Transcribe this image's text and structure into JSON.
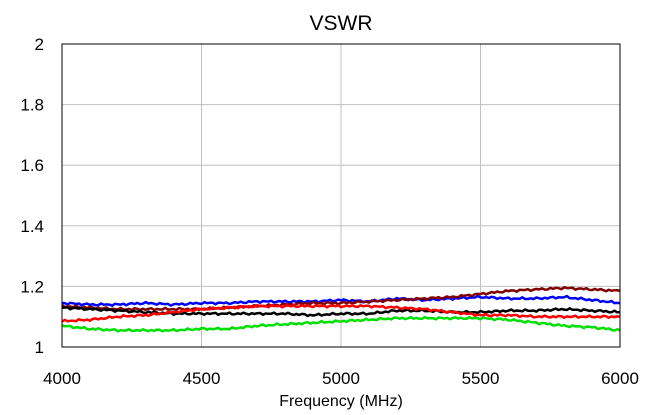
{
  "chart_data": {
    "type": "line",
    "title": "VSWR",
    "xlabel": "Frequency (MHz)",
    "ylabel": "",
    "xlim": [
      4000,
      6000
    ],
    "ylim": [
      1,
      2
    ],
    "xticks": [
      4000,
      4500,
      5000,
      5500,
      6000
    ],
    "yticks": [
      1,
      1.2,
      1.4,
      1.6,
      1.8,
      2
    ],
    "ytick_labels": [
      "1",
      "1.2",
      "1.4",
      "1.6",
      "1.8",
      "2"
    ],
    "grid": true,
    "legend": "none",
    "x": [
      4000,
      4100,
      4200,
      4300,
      4400,
      4500,
      4600,
      4700,
      4800,
      4900,
      5000,
      5100,
      5200,
      5300,
      5400,
      5500,
      5600,
      5700,
      5800,
      5900,
      6000
    ],
    "series": [
      {
        "color": "#0000ff",
        "values": [
          1.145,
          1.14,
          1.14,
          1.145,
          1.14,
          1.145,
          1.145,
          1.15,
          1.15,
          1.15,
          1.155,
          1.15,
          1.16,
          1.155,
          1.16,
          1.165,
          1.16,
          1.16,
          1.165,
          1.155,
          1.145
        ]
      },
      {
        "color": "#800000",
        "values": [
          1.135,
          1.13,
          1.125,
          1.125,
          1.125,
          1.125,
          1.13,
          1.135,
          1.14,
          1.145,
          1.145,
          1.15,
          1.155,
          1.16,
          1.165,
          1.175,
          1.185,
          1.19,
          1.195,
          1.19,
          1.185
        ]
      },
      {
        "color": "#000000",
        "values": [
          1.13,
          1.125,
          1.12,
          1.115,
          1.11,
          1.11,
          1.11,
          1.11,
          1.11,
          1.105,
          1.11,
          1.11,
          1.12,
          1.12,
          1.115,
          1.115,
          1.12,
          1.12,
          1.125,
          1.12,
          1.115
        ]
      },
      {
        "color": "#ff0000",
        "values": [
          1.085,
          1.09,
          1.1,
          1.105,
          1.115,
          1.125,
          1.13,
          1.135,
          1.135,
          1.135,
          1.135,
          1.135,
          1.13,
          1.125,
          1.115,
          1.105,
          1.105,
          1.1,
          1.1,
          1.1,
          1.1
        ]
      },
      {
        "color": "#00e000",
        "values": [
          1.07,
          1.06,
          1.055,
          1.055,
          1.055,
          1.06,
          1.06,
          1.07,
          1.075,
          1.08,
          1.085,
          1.09,
          1.095,
          1.095,
          1.095,
          1.095,
          1.09,
          1.08,
          1.07,
          1.065,
          1.055
        ]
      }
    ]
  }
}
